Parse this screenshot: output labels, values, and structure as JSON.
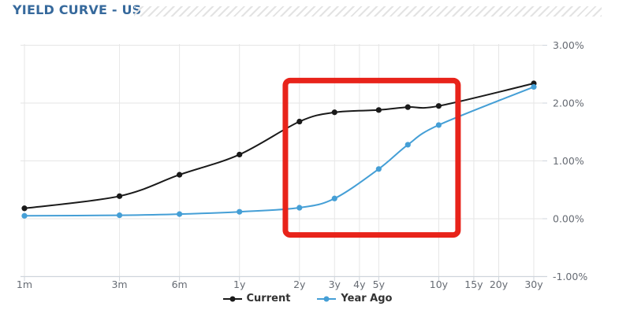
{
  "header": {
    "title": "YIELD CURVE - US"
  },
  "legend": {
    "items": [
      {
        "label": "Current",
        "color": "#1a1a1a"
      },
      {
        "label": "Year Ago",
        "color": "#459fd6"
      }
    ]
  },
  "chart_data": {
    "type": "line",
    "title": "YIELD CURVE - US",
    "x_scale": "logarithmic-maturity",
    "grid": true,
    "legend_position": "bottom",
    "y_axis": {
      "unit": "%",
      "ylim": [
        -1,
        3
      ],
      "side": "right",
      "ticks": [
        {
          "value": 3,
          "label": "3.00%"
        },
        {
          "value": 2,
          "label": "2.00%"
        },
        {
          "value": 1,
          "label": "1.00%"
        },
        {
          "value": 0,
          "label": "0.00%"
        },
        {
          "value": -1,
          "label": "-1.00%"
        }
      ]
    },
    "x_axis": {
      "ticks": [
        {
          "months": 1,
          "label": "1m"
        },
        {
          "months": 3,
          "label": "3m"
        },
        {
          "months": 6,
          "label": "6m"
        },
        {
          "months": 12,
          "label": "1y"
        },
        {
          "months": 24,
          "label": "2y"
        },
        {
          "months": 36,
          "label": "3y"
        },
        {
          "months": 48,
          "label": "4y"
        },
        {
          "months": 60,
          "label": "5y"
        },
        {
          "months": 120,
          "label": "10y"
        },
        {
          "months": 180,
          "label": "15y"
        },
        {
          "months": 240,
          "label": "20y"
        },
        {
          "months": 360,
          "label": "30y"
        }
      ]
    },
    "series": [
      {
        "name": "Current",
        "color": "#1a1a1a",
        "marker": "circle",
        "x_labels": [
          "1m",
          "3m",
          "6m",
          "1y",
          "2y",
          "3y",
          "5y",
          "7y",
          "10y",
          "30y"
        ],
        "x_months": [
          1,
          3,
          6,
          12,
          24,
          36,
          60,
          84,
          120,
          360
        ],
        "values": [
          0.18,
          0.39,
          0.76,
          1.11,
          1.68,
          1.84,
          1.88,
          1.93,
          1.95,
          2.34
        ]
      },
      {
        "name": "Year Ago",
        "color": "#459fd6",
        "marker": "circle",
        "x_labels": [
          "1m",
          "3m",
          "6m",
          "1y",
          "2y",
          "3y",
          "5y",
          "7y",
          "10y",
          "30y"
        ],
        "x_months": [
          1,
          3,
          6,
          12,
          24,
          36,
          60,
          84,
          120,
          360
        ],
        "values": [
          0.05,
          0.06,
          0.08,
          0.12,
          0.19,
          0.35,
          0.86,
          1.28,
          1.62,
          2.28
        ]
      }
    ],
    "annotation": {
      "shape": "rect",
      "color": "#e8231a",
      "stroke_width": 7,
      "corner_radius": 6,
      "x_months_range": [
        20.4,
        150
      ],
      "y_pct_range": [
        -0.28,
        2.39
      ]
    }
  }
}
